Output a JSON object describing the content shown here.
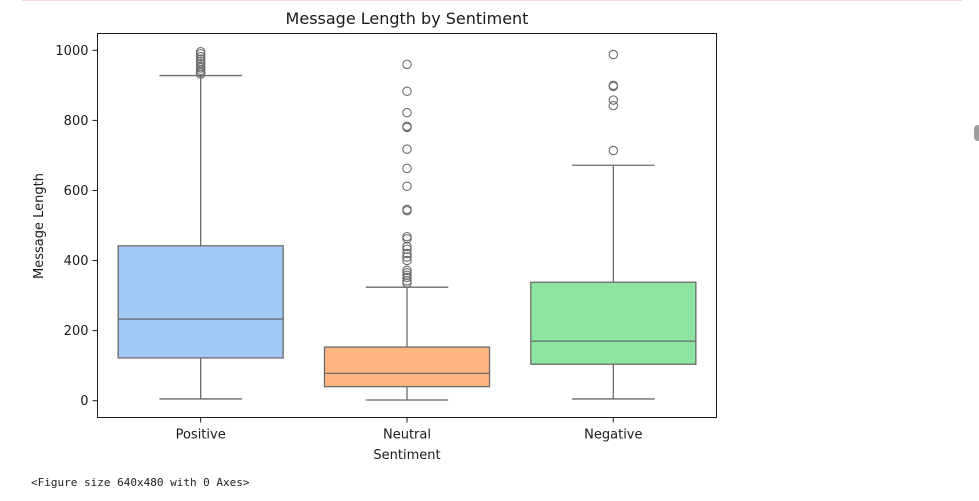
{
  "chart_data": {
    "type": "box",
    "title": "Message Length by Sentiment",
    "xlabel": "Sentiment",
    "ylabel": "Message Length",
    "ylim": [
      -48,
      1048
    ],
    "yticks": [
      0,
      200,
      400,
      600,
      800,
      1000
    ],
    "categories": [
      "Positive",
      "Neutral",
      "Negative"
    ],
    "colors": [
      "#a1c9f4",
      "#ffb482",
      "#8de5a1"
    ],
    "boxes": [
      {
        "category": "Positive",
        "whisker_low": 5,
        "q1": 122,
        "median": 233,
        "q3": 442,
        "whisker_high": 928,
        "outliers": [
          932,
          937,
          943,
          950,
          955,
          962,
          968,
          975,
          982,
          990,
          996
        ]
      },
      {
        "category": "Neutral",
        "whisker_low": 2,
        "q1": 40,
        "median": 78,
        "q3": 153,
        "whisker_high": 324,
        "outliers": [
          336,
          342,
          352,
          358,
          365,
          372,
          400,
          410,
          420,
          432,
          440,
          462,
          468,
          542,
          546,
          612,
          663,
          718,
          780,
          783,
          822,
          883,
          960
        ]
      },
      {
        "category": "Negative",
        "whisker_low": 5,
        "q1": 104,
        "median": 170,
        "q3": 338,
        "whisker_high": 672,
        "outliers": [
          714,
          842,
          858,
          897,
          900,
          988
        ]
      }
    ],
    "grid": false,
    "legend": "none"
  },
  "figure_caption": "<Figure size 640x480 with 0 Axes>"
}
